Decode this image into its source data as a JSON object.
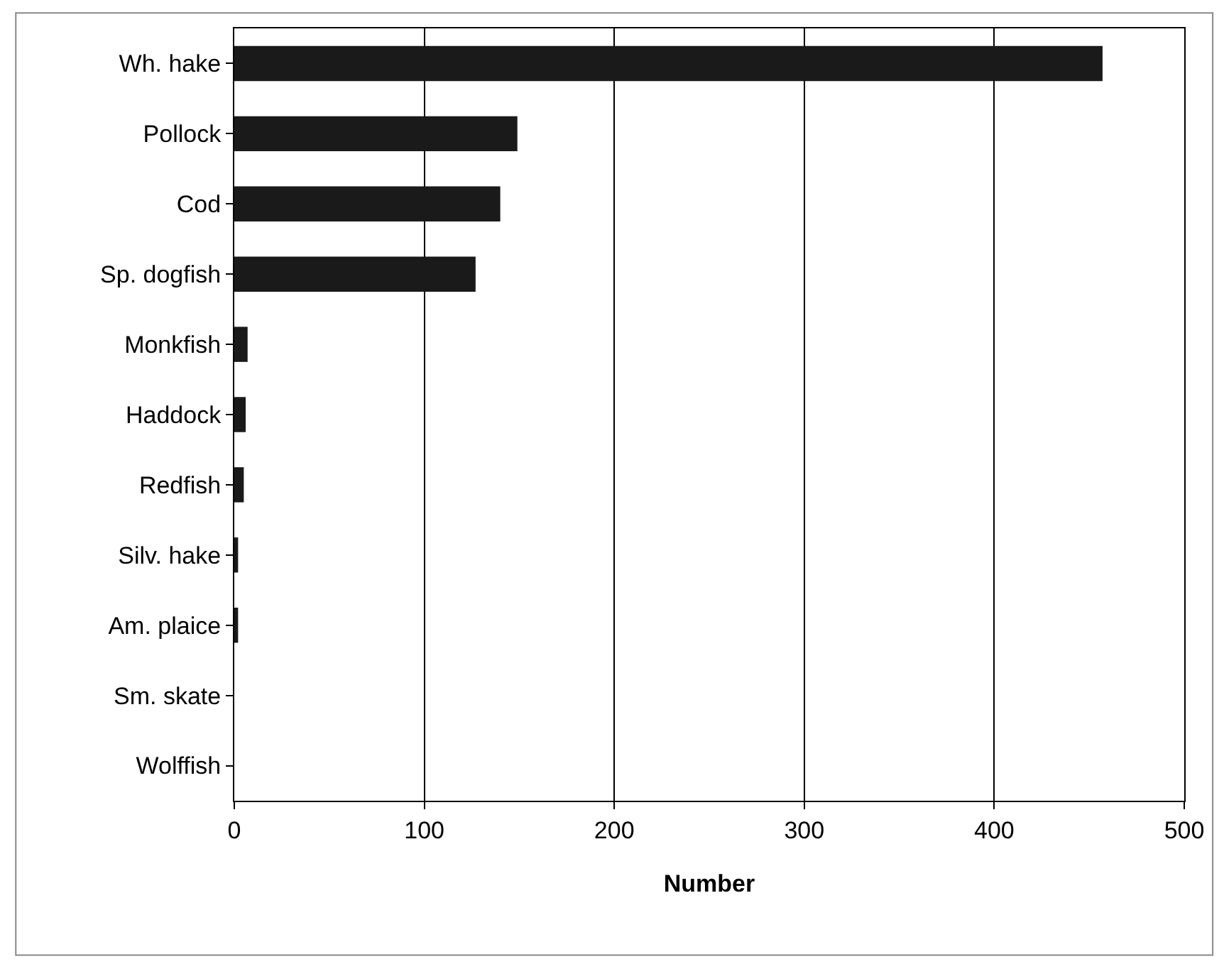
{
  "chart_data": {
    "type": "bar",
    "orientation": "horizontal",
    "categories": [
      "Wh. hake",
      "Pollock",
      "Cod",
      "Sp. dogfish",
      "Monkfish",
      "Haddock",
      "Redfish",
      "Silv. hake",
      "Am. plaice",
      "Sm. skate",
      "Wolffish"
    ],
    "values": [
      457,
      149,
      140,
      127,
      7,
      6,
      5,
      2,
      2,
      0,
      0
    ],
    "color": "#1a1a1a",
    "xlabel": "Number",
    "xlim": [
      0,
      500
    ],
    "xticks": [
      0,
      100,
      200,
      300,
      400,
      500
    ],
    "grid": "x"
  }
}
